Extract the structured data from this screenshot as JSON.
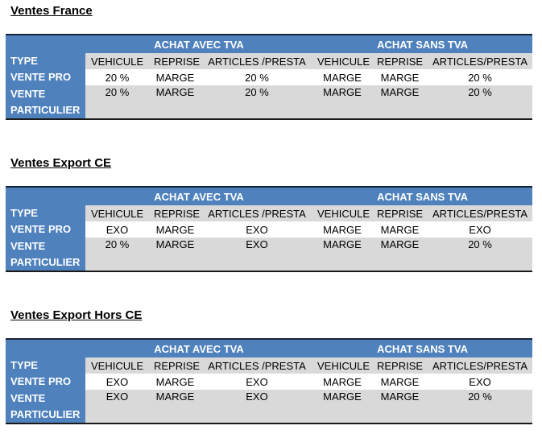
{
  "sections": [
    {
      "title": "Ventes France",
      "groups": [
        "ACHAT AVEC TVA",
        "ACHAT SANS TVA"
      ],
      "columns": [
        "TYPE",
        "VEHICULE",
        "REPRISE",
        "ARTICLES /PRESTA",
        "VEHICULE",
        "REPRISE",
        "ARTICLES/PRESTA"
      ],
      "rows": [
        [
          "VENTE PRO",
          "20 %",
          "MARGE",
          "20 %",
          "MARGE",
          "MARGE",
          "20 %"
        ],
        [
          "VENTE PARTICULIER",
          "20 %",
          "MARGE",
          "20 %",
          "MARGE",
          "MARGE",
          "20 %"
        ]
      ]
    },
    {
      "title": "Ventes Export CE",
      "groups": [
        "ACHAT AVEC TVA",
        "ACHAT SANS TVA"
      ],
      "columns": [
        "TYPE",
        "VEHICULE",
        "REPRISE",
        "ARTICLES /PRESTA",
        "VEHICULE",
        "REPRISE",
        "ARTICLES/PRESTA"
      ],
      "rows": [
        [
          "VENTE PRO",
          "EXO",
          "MARGE",
          "EXO",
          "MARGE",
          "MARGE",
          "EXO"
        ],
        [
          "VENTE PARTICULIER",
          "20 %",
          "MARGE",
          "EXO",
          "MARGE",
          "MARGE",
          "20 %"
        ]
      ]
    },
    {
      "title": "Ventes Export Hors CE",
      "groups": [
        "ACHAT AVEC TVA",
        "ACHAT SANS TVA"
      ],
      "columns": [
        "TYPE",
        "VEHICULE",
        "REPRISE",
        "ARTICLES /PRESTA",
        "VEHICULE",
        "REPRISE",
        "ARTICLES/PRESTA"
      ],
      "rows": [
        [
          "VENTE PRO",
          "EXO",
          "MARGE",
          "EXO",
          "MARGE",
          "MARGE",
          "EXO"
        ],
        [
          "VENTE PARTICULIER",
          "EXO",
          "MARGE",
          "EXO",
          "MARGE",
          "MARGE",
          "20 %"
        ]
      ]
    }
  ]
}
